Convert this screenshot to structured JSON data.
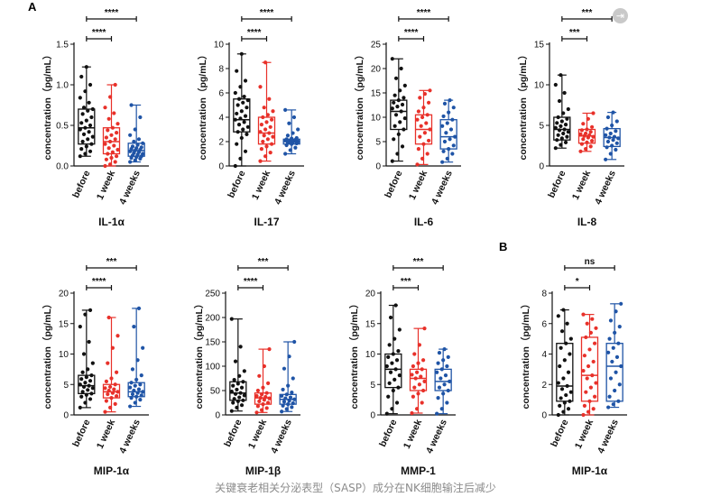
{
  "figure": {
    "panel_labels": [
      "A",
      "B"
    ],
    "caption": "关键衰老相关分泌表型（SASP）成分在NK细胞输注后减少",
    "colors": {
      "before": "#111111",
      "week1": "#e8312a",
      "weeks4": "#1f54a6",
      "text": "#111111"
    },
    "corner_icon": "exit-icon"
  },
  "chart_data": [
    {
      "id": "il1a",
      "type": "box",
      "title": "IL-1α",
      "panel": "A",
      "ylabel": "concentration（pg/mL）",
      "ylim": [
        0,
        1.5
      ],
      "yticks": [
        0.0,
        0.5,
        1.0,
        1.5
      ],
      "tick_decimals": 1,
      "categories": [
        "before",
        "1 week",
        "4 weeks"
      ],
      "series": [
        {
          "name": "before",
          "min": 0.12,
          "q1": 0.27,
          "median": 0.47,
          "q3": 0.7,
          "max": 1.22,
          "points": [
            0.12,
            0.15,
            0.18,
            0.21,
            0.24,
            0.27,
            0.3,
            0.33,
            0.36,
            0.39,
            0.42,
            0.45,
            0.47,
            0.5,
            0.53,
            0.56,
            0.6,
            0.64,
            0.68,
            0.7,
            0.72,
            0.78,
            0.84,
            0.92,
            1.0,
            1.1,
            1.22
          ]
        },
        {
          "name": "1 week",
          "min": 0.0,
          "q1": 0.15,
          "median": 0.3,
          "q3": 0.47,
          "max": 1.0,
          "points": [
            0.0,
            0.02,
            0.05,
            0.08,
            0.1,
            0.12,
            0.15,
            0.17,
            0.2,
            0.22,
            0.25,
            0.27,
            0.3,
            0.33,
            0.35,
            0.38,
            0.41,
            0.44,
            0.47,
            0.52,
            0.58,
            0.65,
            0.72,
            0.85,
            1.0
          ]
        },
        {
          "name": "4 weeks",
          "min": 0.05,
          "q1": 0.12,
          "median": 0.19,
          "q3": 0.28,
          "max": 0.75,
          "points": [
            0.05,
            0.07,
            0.09,
            0.1,
            0.11,
            0.12,
            0.13,
            0.14,
            0.15,
            0.16,
            0.17,
            0.18,
            0.19,
            0.2,
            0.21,
            0.22,
            0.23,
            0.24,
            0.26,
            0.28,
            0.3,
            0.33,
            0.38,
            0.45,
            0.6,
            0.75
          ]
        }
      ],
      "comparisons": [
        {
          "from": 0,
          "to": 1,
          "label": "****"
        },
        {
          "from": 0,
          "to": 2,
          "label": "****"
        }
      ]
    },
    {
      "id": "il17",
      "type": "box",
      "title": "IL-17",
      "panel": "A",
      "ylabel": "concentration（pg/mL）",
      "ylim": [
        0,
        10
      ],
      "yticks": [
        0,
        2,
        4,
        6,
        8,
        10
      ],
      "tick_decimals": 0,
      "categories": [
        "before",
        "1 week",
        "4 weeks"
      ],
      "series": [
        {
          "name": "before",
          "min": 0.0,
          "q1": 2.8,
          "median": 3.8,
          "q3": 5.5,
          "max": 9.2,
          "points": [
            0.0,
            0.6,
            1.2,
            1.8,
            2.3,
            2.6,
            2.8,
            3.0,
            3.2,
            3.4,
            3.6,
            3.8,
            3.9,
            4.1,
            4.3,
            4.5,
            4.8,
            5.0,
            5.2,
            5.4,
            5.5,
            5.7,
            6.0,
            6.5,
            7.0,
            7.8,
            9.2
          ]
        },
        {
          "name": "1 week",
          "min": 0.4,
          "q1": 1.8,
          "median": 2.7,
          "q3": 4.0,
          "max": 8.5,
          "points": [
            0.4,
            0.8,
            1.1,
            1.4,
            1.6,
            1.8,
            2.0,
            2.2,
            2.4,
            2.5,
            2.7,
            2.8,
            3.0,
            3.2,
            3.4,
            3.6,
            3.8,
            4.0,
            4.2,
            4.5,
            4.8,
            5.5,
            6.5,
            8.5
          ]
        },
        {
          "name": "4 weeks",
          "min": 1.0,
          "q1": 1.8,
          "median": 2.0,
          "q3": 2.2,
          "max": 4.6,
          "points": [
            1.0,
            1.3,
            1.5,
            1.7,
            1.8,
            1.85,
            1.9,
            1.95,
            2.0,
            2.0,
            2.05,
            2.1,
            2.1,
            2.15,
            2.2,
            2.25,
            2.3,
            2.5,
            2.7,
            3.0,
            3.5,
            4.0,
            4.6
          ]
        }
      ],
      "comparisons": [
        {
          "from": 0,
          "to": 1,
          "label": "****"
        },
        {
          "from": 0,
          "to": 2,
          "label": "****"
        }
      ]
    },
    {
      "id": "il6",
      "type": "box",
      "title": "IL-6",
      "panel": "A",
      "ylabel": "concentration（pg/mL）",
      "ylim": [
        0,
        25
      ],
      "yticks": [
        0,
        5,
        10,
        15,
        20,
        25
      ],
      "tick_decimals": 0,
      "categories": [
        "before",
        "1 week",
        "4 weeks"
      ],
      "series": [
        {
          "name": "before",
          "min": 1.0,
          "q1": 7.5,
          "median": 11.2,
          "q3": 13.5,
          "max": 22.0,
          "points": [
            1.0,
            2.5,
            4.0,
            5.5,
            6.5,
            7.5,
            8.2,
            9.0,
            9.8,
            10.5,
            11.2,
            11.8,
            12.2,
            12.6,
            13.0,
            13.5,
            14.0,
            14.5,
            15.5,
            16.5,
            18.0,
            20.0,
            22.0
          ]
        },
        {
          "name": "1 week",
          "min": 0.3,
          "q1": 4.5,
          "median": 7.5,
          "q3": 10.5,
          "max": 15.5,
          "points": [
            0.3,
            1.5,
            2.5,
            3.5,
            4.5,
            5.2,
            6.0,
            6.8,
            7.5,
            8.2,
            8.8,
            9.5,
            10.0,
            10.5,
            11.2,
            12.0,
            13.0,
            14.0,
            14.8,
            15.5
          ]
        },
        {
          "name": "4 weeks",
          "min": 0.8,
          "q1": 3.5,
          "median": 6.0,
          "q3": 9.5,
          "max": 13.5,
          "points": [
            0.8,
            1.5,
            2.5,
            3.0,
            3.5,
            4.2,
            5.0,
            5.5,
            6.0,
            6.8,
            7.5,
            8.2,
            8.8,
            9.5,
            10.2,
            11.0,
            12.0,
            12.8,
            13.5
          ]
        }
      ],
      "comparisons": [
        {
          "from": 0,
          "to": 1,
          "label": "****"
        },
        {
          "from": 0,
          "to": 2,
          "label": "****"
        }
      ]
    },
    {
      "id": "il8",
      "type": "box",
      "title": "IL-8",
      "panel": "A",
      "ylabel": "concentration（pg/mL）",
      "ylim": [
        0,
        15
      ],
      "yticks": [
        0,
        5,
        10,
        15
      ],
      "tick_decimals": 0,
      "categories": [
        "before",
        "1 week",
        "4 weeks"
      ],
      "series": [
        {
          "name": "before",
          "min": 2.2,
          "q1": 3.2,
          "median": 4.5,
          "q3": 6.0,
          "max": 11.2,
          "points": [
            2.2,
            2.6,
            2.9,
            3.2,
            3.4,
            3.6,
            3.8,
            4.0,
            4.2,
            4.4,
            4.5,
            4.7,
            4.9,
            5.1,
            5.3,
            5.5,
            5.8,
            6.0,
            6.5,
            7.0,
            8.0,
            9.0,
            10.0,
            11.2
          ]
        },
        {
          "name": "1 week",
          "min": 1.8,
          "q1": 2.8,
          "median": 3.7,
          "q3": 4.5,
          "max": 6.5,
          "points": [
            1.8,
            2.1,
            2.4,
            2.7,
            2.9,
            3.1,
            3.3,
            3.5,
            3.6,
            3.7,
            3.8,
            3.9,
            4.0,
            4.2,
            4.4,
            4.5,
            4.8,
            5.2,
            5.8,
            6.5
          ]
        },
        {
          "name": "4 weeks",
          "min": 0.8,
          "q1": 2.4,
          "median": 3.5,
          "q3": 4.6,
          "max": 6.6,
          "points": [
            0.8,
            1.5,
            2.0,
            2.3,
            2.5,
            2.8,
            3.0,
            3.2,
            3.4,
            3.5,
            3.6,
            3.8,
            4.0,
            4.3,
            4.6,
            5.0,
            5.5,
            6.0,
            6.6
          ]
        }
      ],
      "comparisons": [
        {
          "from": 0,
          "to": 1,
          "label": "***"
        },
        {
          "from": 0,
          "to": 2,
          "label": "***"
        }
      ]
    },
    {
      "id": "mip1a",
      "type": "box",
      "title": "MIP-1α",
      "panel": "A",
      "ylabel": "concentration（pg/mL）",
      "ylim": [
        0,
        20
      ],
      "yticks": [
        0,
        5,
        10,
        15,
        20
      ],
      "tick_decimals": 0,
      "categories": [
        "before",
        "1 week",
        "4 weeks"
      ],
      "series": [
        {
          "name": "before",
          "min": 1.2,
          "q1": 3.5,
          "median": 4.8,
          "q3": 6.5,
          "max": 17.2,
          "points": [
            1.2,
            2.0,
            2.6,
            3.0,
            3.3,
            3.5,
            3.8,
            4.1,
            4.4,
            4.6,
            4.8,
            5.0,
            5.3,
            5.6,
            5.9,
            6.2,
            6.5,
            7.0,
            7.5,
            8.5,
            10.0,
            12.0,
            14.5,
            16.5,
            17.2
          ]
        },
        {
          "name": "1 week",
          "min": 0.5,
          "q1": 2.8,
          "median": 3.8,
          "q3": 5.0,
          "max": 16.0,
          "points": [
            0.5,
            1.2,
            1.8,
            2.3,
            2.8,
            3.1,
            3.4,
            3.6,
            3.8,
            4.0,
            4.2,
            4.4,
            4.6,
            5.0,
            5.5,
            6.0,
            7.0,
            8.5,
            11.0,
            13.0,
            16.0
          ]
        },
        {
          "name": "4 weeks",
          "min": 1.4,
          "q1": 3.0,
          "median": 3.8,
          "q3": 5.3,
          "max": 17.5,
          "points": [
            1.4,
            2.0,
            2.5,
            2.8,
            3.0,
            3.2,
            3.4,
            3.6,
            3.8,
            4.0,
            4.2,
            4.5,
            4.8,
            5.0,
            5.3,
            5.8,
            6.5,
            7.5,
            9.0,
            11.0,
            14.5,
            17.5
          ]
        }
      ],
      "comparisons": [
        {
          "from": 0,
          "to": 1,
          "label": "****"
        },
        {
          "from": 0,
          "to": 2,
          "label": "***"
        }
      ]
    },
    {
      "id": "mip1b",
      "type": "box",
      "title": "MIP-1β",
      "panel": "A",
      "ylabel": "concentration（pg/mL）",
      "ylim": [
        0,
        250
      ],
      "yticks": [
        0,
        50,
        100,
        150,
        200,
        250
      ],
      "tick_decimals": 0,
      "categories": [
        "before",
        "1 week",
        "4 weeks"
      ],
      "series": [
        {
          "name": "before",
          "min": 8.0,
          "q1": 30.0,
          "median": 45.0,
          "q3": 68.0,
          "max": 197.0,
          "points": [
            8,
            15,
            20,
            25,
            28,
            30,
            33,
            36,
            40,
            43,
            45,
            48,
            52,
            56,
            60,
            64,
            68,
            72,
            80,
            90,
            110,
            140,
            197
          ]
        },
        {
          "name": "1 week",
          "min": 5.0,
          "q1": 22.0,
          "median": 35.0,
          "q3": 45.0,
          "max": 135.0,
          "points": [
            5,
            10,
            14,
            18,
            22,
            25,
            28,
            31,
            34,
            35,
            37,
            39,
            42,
            45,
            50,
            56,
            65,
            80,
            100,
            135
          ]
        },
        {
          "name": "4 weeks",
          "min": 7.0,
          "q1": 22.0,
          "median": 32.0,
          "q3": 42.0,
          "max": 150.0,
          "points": [
            7,
            12,
            16,
            19,
            22,
            24,
            27,
            29,
            32,
            34,
            36,
            39,
            42,
            46,
            52,
            60,
            75,
            95,
            120,
            150
          ]
        }
      ],
      "comparisons": [
        {
          "from": 0,
          "to": 1,
          "label": "****"
        },
        {
          "from": 0,
          "to": 2,
          "label": "***"
        }
      ]
    },
    {
      "id": "mmp1",
      "type": "box",
      "title": "MMP-1",
      "panel": "A",
      "ylabel": "concentration（pg/mL）",
      "ylim": [
        0,
        20
      ],
      "yticks": [
        0,
        5,
        10,
        15,
        20
      ],
      "tick_decimals": 0,
      "categories": [
        "before",
        "1 week",
        "4 weeks"
      ],
      "series": [
        {
          "name": "before",
          "min": 0.2,
          "q1": 4.5,
          "median": 7.5,
          "q3": 10.0,
          "max": 18.0,
          "points": [
            0.2,
            1.0,
            2.0,
            3.0,
            4.0,
            4.5,
            5.2,
            5.8,
            6.5,
            7.0,
            7.5,
            8.0,
            8.5,
            9.0,
            9.5,
            10.0,
            10.5,
            11.5,
            12.5,
            14.0,
            16.0,
            18.0
          ]
        },
        {
          "name": "1 week",
          "min": 0.3,
          "q1": 4.0,
          "median": 6.0,
          "q3": 7.5,
          "max": 14.2,
          "points": [
            0.3,
            1.0,
            2.0,
            3.0,
            3.5,
            4.0,
            4.5,
            5.0,
            5.5,
            6.0,
            6.3,
            6.6,
            7.0,
            7.5,
            8.0,
            8.5,
            9.0,
            10.0,
            11.5,
            14.2
          ]
        },
        {
          "name": "4 weeks",
          "min": 0.2,
          "q1": 4.0,
          "median": 5.5,
          "q3": 7.5,
          "max": 10.8,
          "points": [
            0.2,
            1.0,
            2.0,
            2.8,
            3.5,
            4.0,
            4.5,
            5.0,
            5.5,
            6.0,
            6.5,
            7.0,
            7.5,
            8.0,
            8.5,
            9.0,
            9.5,
            10.2,
            10.8
          ]
        }
      ],
      "comparisons": [
        {
          "from": 0,
          "to": 1,
          "label": "***"
        },
        {
          "from": 0,
          "to": 2,
          "label": "***"
        }
      ]
    },
    {
      "id": "mip1a_b",
      "type": "box",
      "title": "MIP-1α",
      "panel": "B",
      "ylabel": "concentration（pg/mL）",
      "ylim": [
        0,
        8
      ],
      "yticks": [
        0,
        2,
        4,
        6,
        8
      ],
      "tick_decimals": 0,
      "categories": [
        "before",
        "1 week",
        "4 weeks"
      ],
      "series": [
        {
          "name": "before",
          "min": 0.0,
          "q1": 0.9,
          "median": 1.9,
          "q3": 4.7,
          "max": 6.9,
          "points": [
            0.0,
            0.2,
            0.4,
            0.6,
            0.8,
            0.9,
            1.1,
            1.3,
            1.5,
            1.7,
            1.9,
            2.1,
            2.4,
            2.8,
            3.2,
            3.6,
            4.0,
            4.4,
            4.7,
            5.0,
            5.5,
            6.0,
            6.5,
            6.9
          ]
        },
        {
          "name": "1 week",
          "min": 0.0,
          "q1": 0.9,
          "median": 2.6,
          "q3": 5.1,
          "max": 6.6,
          "points": [
            0.0,
            0.2,
            0.4,
            0.6,
            0.9,
            1.2,
            1.5,
            1.8,
            2.1,
            2.4,
            2.6,
            2.9,
            3.2,
            3.5,
            3.9,
            4.3,
            4.7,
            5.1,
            5.4,
            5.7,
            6.0,
            6.3,
            6.6
          ]
        },
        {
          "name": "4 weeks",
          "min": 0.5,
          "q1": 0.9,
          "median": 3.2,
          "q3": 4.7,
          "max": 7.3,
          "points": [
            0.5,
            0.7,
            0.9,
            1.2,
            1.6,
            2.0,
            2.4,
            2.8,
            3.2,
            3.5,
            3.8,
            4.1,
            4.4,
            4.7,
            5.0,
            5.4,
            5.8,
            6.2,
            6.8,
            7.3
          ]
        }
      ],
      "comparisons": [
        {
          "from": 0,
          "to": 1,
          "label": "*"
        },
        {
          "from": 0,
          "to": 2,
          "label": "ns"
        }
      ]
    }
  ]
}
